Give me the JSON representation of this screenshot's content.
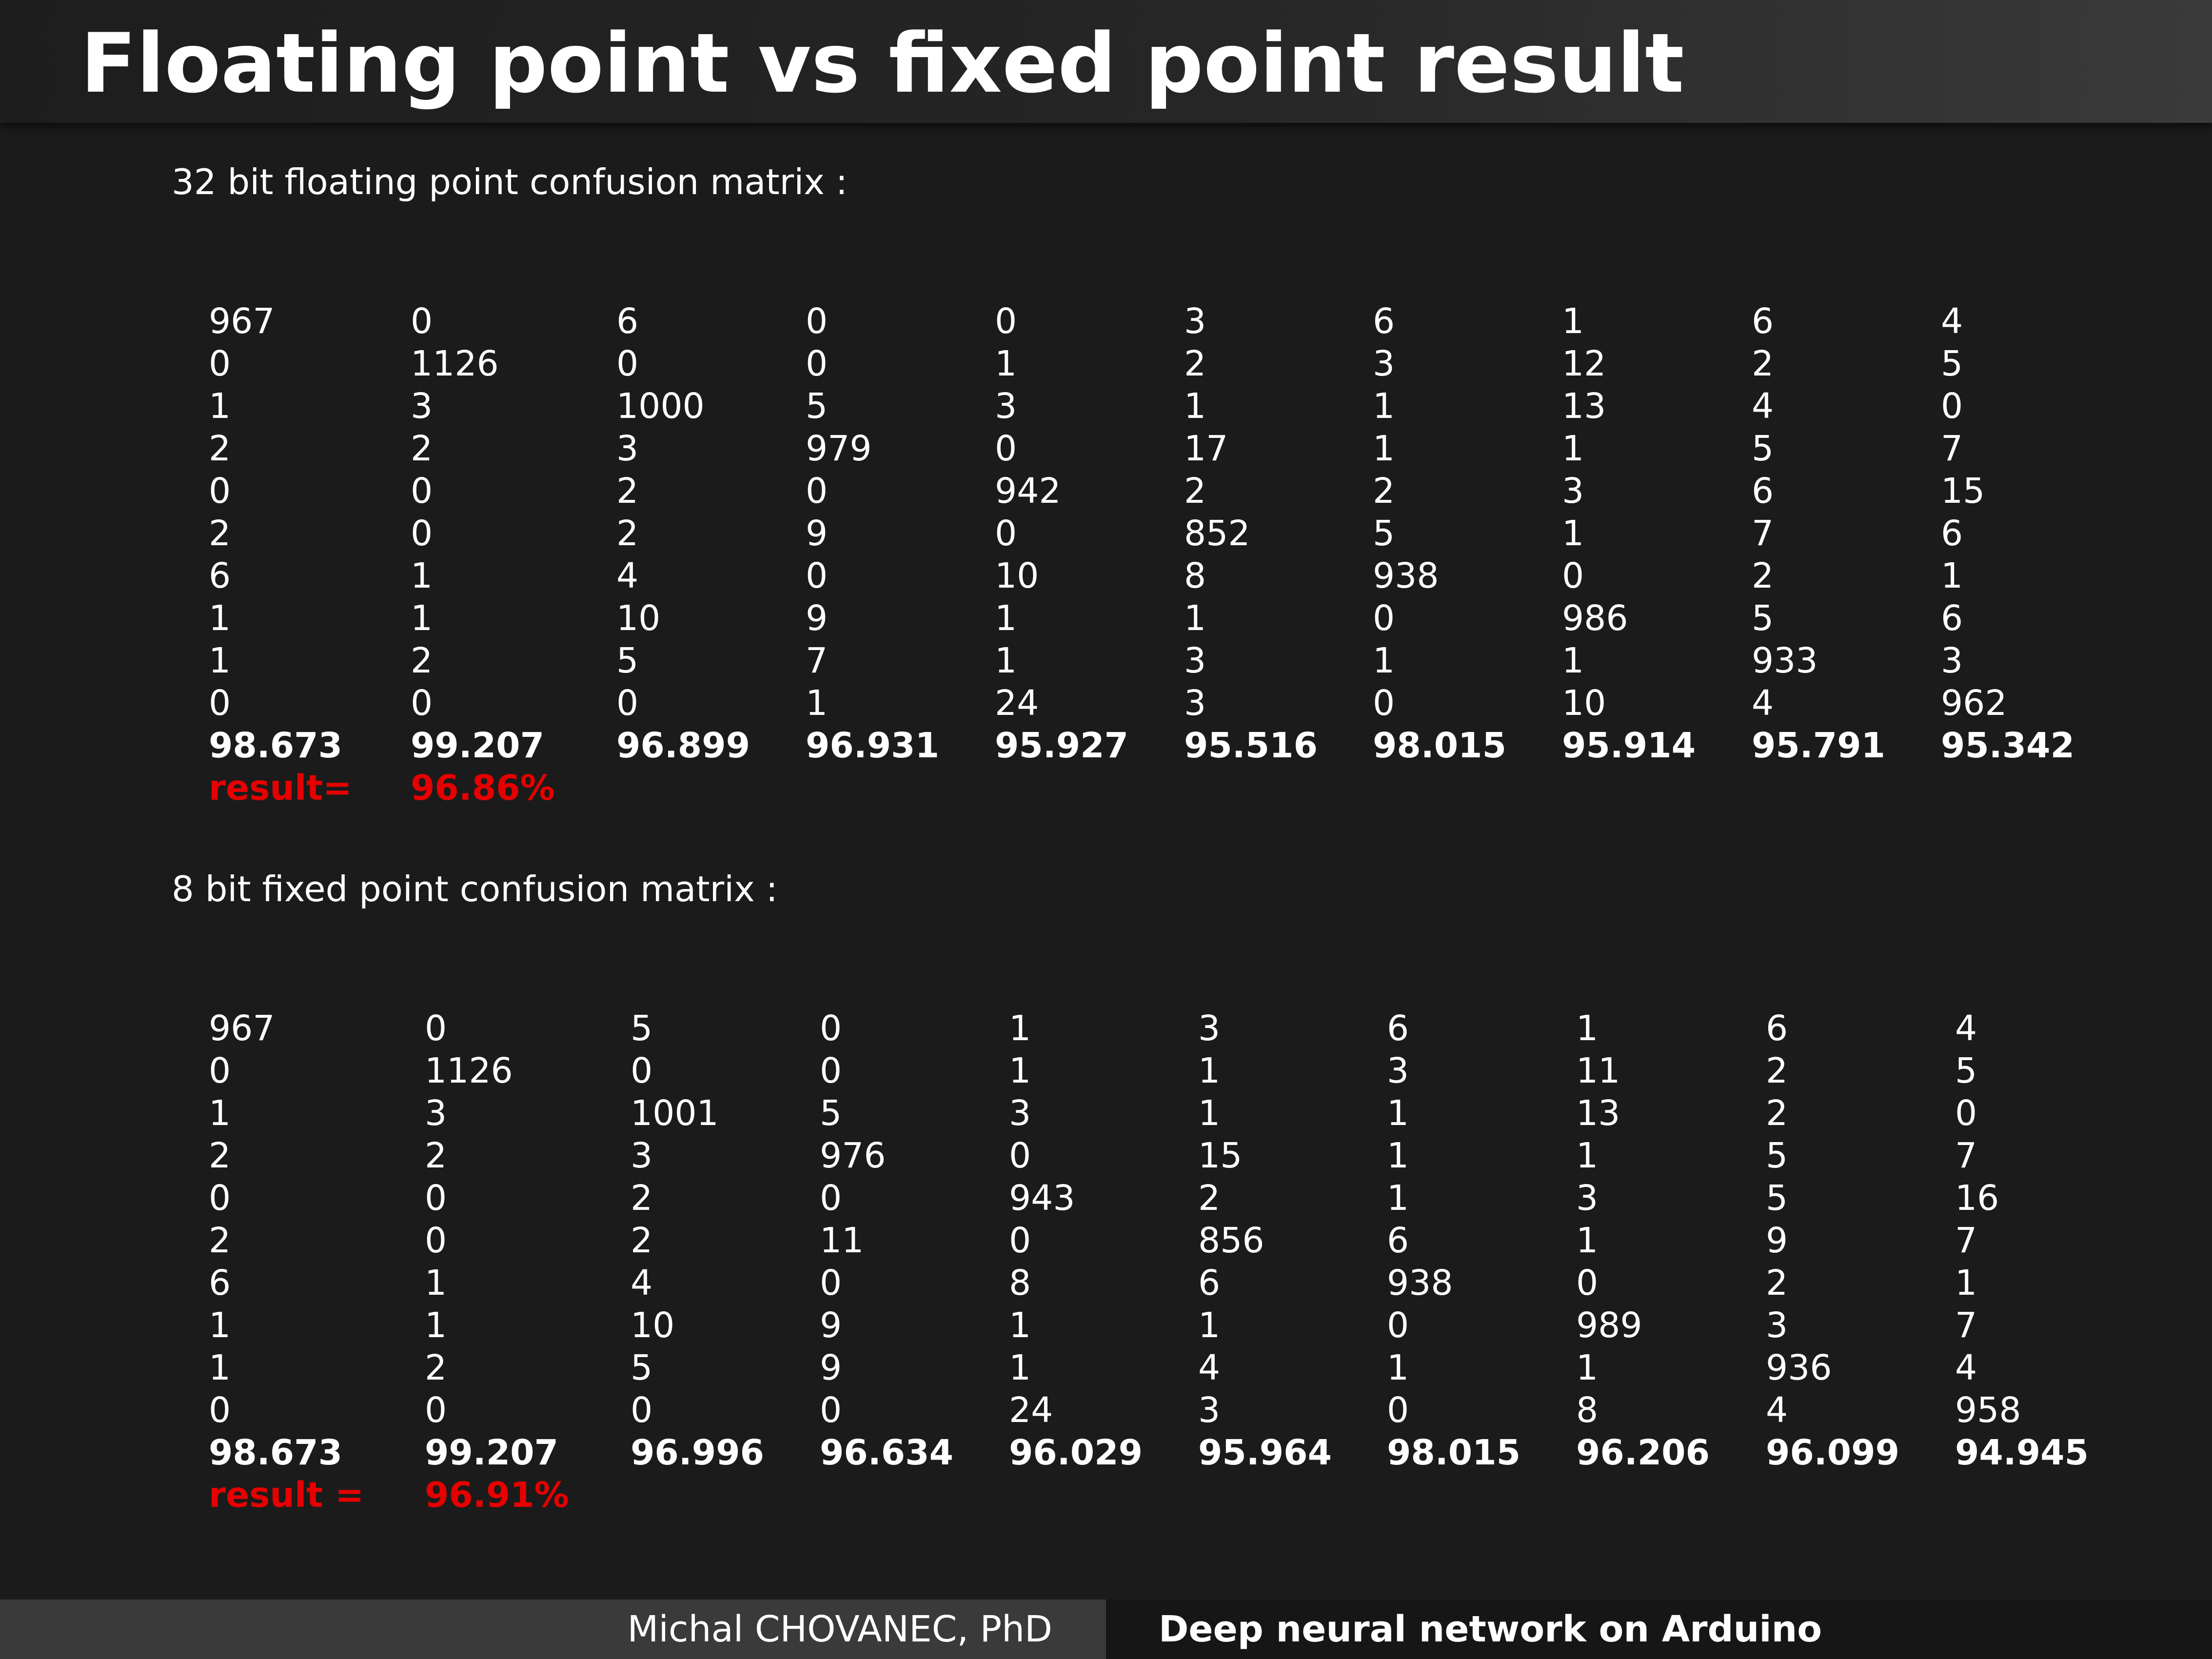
{
  "slide": {
    "title": "Floating point vs fixed point result"
  },
  "float_section": {
    "heading": "32 bit floating point confusion matrix :",
    "matrix": [
      [
        "967",
        "0",
        "6",
        "0",
        "0",
        "3",
        "6",
        "1",
        "6",
        "4"
      ],
      [
        "0",
        "1126",
        "0",
        "0",
        "1",
        "2",
        "3",
        "12",
        "2",
        "5"
      ],
      [
        "1",
        "3",
        "1000",
        "5",
        "3",
        "1",
        "1",
        "13",
        "4",
        "0"
      ],
      [
        "2",
        "2",
        "3",
        "979",
        "0",
        "17",
        "1",
        "1",
        "5",
        "7"
      ],
      [
        "0",
        "0",
        "2",
        "0",
        "942",
        "2",
        "2",
        "3",
        "6",
        "15"
      ],
      [
        "2",
        "0",
        "2",
        "9",
        "0",
        "852",
        "5",
        "1",
        "7",
        "6"
      ],
      [
        "6",
        "1",
        "4",
        "0",
        "10",
        "8",
        "938",
        "0",
        "2",
        "1"
      ],
      [
        "1",
        "1",
        "10",
        "9",
        "1",
        "1",
        "0",
        "986",
        "5",
        "6"
      ],
      [
        "1",
        "2",
        "5",
        "7",
        "1",
        "3",
        "1",
        "1",
        "933",
        "3"
      ],
      [
        "0",
        "0",
        "0",
        "1",
        "24",
        "3",
        "0",
        "10",
        "4",
        "962"
      ]
    ],
    "accuracy": [
      "98.673",
      "99.207",
      "96.899",
      "96.931",
      "95.927",
      "95.516",
      "98.015",
      "95.914",
      "95.791",
      "95.342"
    ],
    "result_label": "result=",
    "result_value": "96.86%"
  },
  "fixed_section": {
    "heading": "8 bit fixed point confusion matrix :",
    "matrix": [
      [
        "967",
        "0",
        "5",
        "0",
        "1",
        "3",
        "6",
        "1",
        "6",
        "4"
      ],
      [
        "0",
        "1126",
        "0",
        "0",
        "1",
        "1",
        "3",
        "11",
        "2",
        "5"
      ],
      [
        "1",
        "3",
        "1001",
        "5",
        "3",
        "1",
        "1",
        "13",
        "2",
        "0"
      ],
      [
        "2",
        "2",
        "3",
        "976",
        "0",
        "15",
        "1",
        "1",
        "5",
        "7"
      ],
      [
        "0",
        "0",
        "2",
        "0",
        "943",
        "2",
        "1",
        "3",
        "5",
        "16"
      ],
      [
        "2",
        "0",
        "2",
        "11",
        "0",
        "856",
        "6",
        "1",
        "9",
        "7"
      ],
      [
        "6",
        "1",
        "4",
        "0",
        "8",
        "6",
        "938",
        "0",
        "2",
        "1"
      ],
      [
        "1",
        "1",
        "10",
        "9",
        "1",
        "1",
        "0",
        "989",
        "3",
        "7"
      ],
      [
        "1",
        "2",
        "5",
        "9",
        "1",
        "4",
        "1",
        "1",
        "936",
        "4"
      ],
      [
        "0",
        "0",
        "0",
        "0",
        "24",
        "3",
        "0",
        "8",
        "4",
        "958"
      ]
    ],
    "accuracy": [
      "98.673",
      "99.207",
      "96.996",
      "96.634",
      "96.029",
      "95.964",
      "98.015",
      "96.206",
      "96.099",
      "94.945"
    ],
    "result_label": "result =",
    "result_value": "96.91%"
  },
  "footer": {
    "author": "Michal CHOVANEC, PhD",
    "talk_title": "Deep neural network on Arduino"
  },
  "colors": {
    "background": "#1b1b1b",
    "text": "#ffffff",
    "result": "#e60000",
    "footer_left": "#3a3a3a",
    "footer_right": "#161616"
  }
}
